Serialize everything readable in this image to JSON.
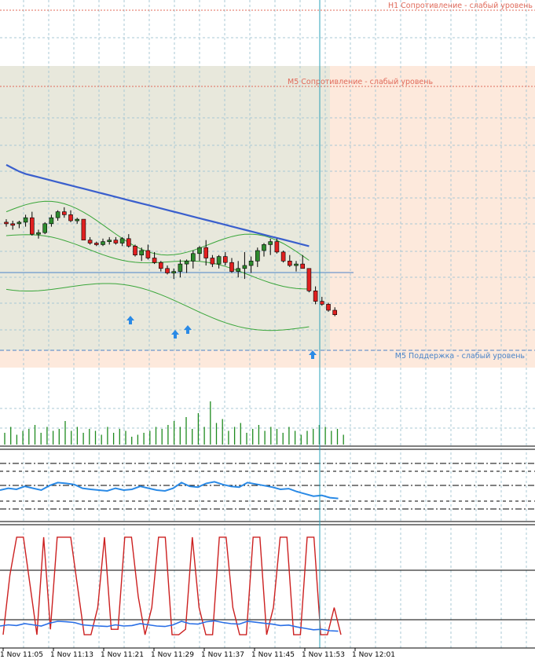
{
  "colors": {
    "background": "#ffffff",
    "grid": "#a9c8d4",
    "zone_green": "#e8e8dc",
    "zone_salmon": "#fde9dc",
    "bull_candle": "#2e8b2e",
    "bear_candle": "#e02020",
    "moving_average": "#3a5fcd",
    "bands": "#3aa63a",
    "crosshair": "#2aa0b8",
    "resistance_label": "#e06a5a",
    "support_label": "#4a84c8",
    "signal_arrow": "#2a8ae6",
    "volume": "#1e8a1e",
    "oscillator": "#2a8ae6",
    "stoch_line": "#cc2020"
  },
  "levels": {
    "h1_resistance": "H1 Сопротивление - слабый уровень",
    "m5_resistance": "M5 Сопротивление - слабый уровень",
    "m5_support": "M5 Поддержка - слабый уровень"
  },
  "signal_arrow_icon": "up-arrow-icon",
  "time_axis": [
    "1 Nov 11:05",
    "1 Nov 11:13",
    "1 Nov 11:21",
    "1 Nov 11:29",
    "1 Nov 11:37",
    "1 Nov 11:45",
    "1 Nov 11:53",
    "1 Nov 12:01"
  ],
  "chart_data": {
    "type": "candlestick",
    "candles_ohlc": [
      [
        0.45,
        0.55,
        0.3,
        0.4
      ],
      [
        0.4,
        0.5,
        0.2,
        0.35
      ],
      [
        0.4,
        0.5,
        0.25,
        0.45
      ],
      [
        0.45,
        0.7,
        0.3,
        0.6
      ],
      [
        0.6,
        0.8,
        0.0,
        0.05
      ],
      [
        0.05,
        0.2,
        -0.1,
        0.1
      ],
      [
        0.1,
        0.45,
        0.05,
        0.4
      ],
      [
        0.4,
        0.7,
        0.3,
        0.6
      ],
      [
        0.6,
        0.85,
        0.5,
        0.8
      ],
      [
        0.8,
        0.95,
        0.6,
        0.7
      ],
      [
        0.7,
        0.85,
        0.45,
        0.5
      ],
      [
        0.5,
        0.6,
        0.4,
        0.55
      ],
      [
        0.55,
        0.55,
        -0.1,
        -0.15
      ],
      [
        -0.15,
        -0.05,
        -0.3,
        -0.25
      ],
      [
        -0.25,
        -0.2,
        -0.35,
        -0.3
      ],
      [
        -0.3,
        -0.1,
        -0.35,
        -0.2
      ],
      [
        -0.2,
        -0.05,
        -0.3,
        -0.15
      ],
      [
        -0.15,
        -0.05,
        -0.3,
        -0.25
      ],
      [
        -0.25,
        -0.05,
        -0.35,
        -0.1
      ],
      [
        -0.1,
        0.05,
        -0.4,
        -0.35
      ],
      [
        -0.35,
        -0.3,
        -0.7,
        -0.65
      ],
      [
        -0.65,
        -0.4,
        -0.85,
        -0.5
      ],
      [
        -0.5,
        -0.3,
        -0.8,
        -0.75
      ],
      [
        -0.75,
        -0.55,
        -0.95,
        -0.9
      ],
      [
        -0.9,
        -0.85,
        -1.2,
        -1.1
      ],
      [
        -1.1,
        -1.0,
        -1.3,
        -1.25
      ],
      [
        -1.25,
        -1.1,
        -1.45,
        -1.2
      ],
      [
        -1.2,
        -0.8,
        -1.4,
        -0.95
      ],
      [
        -0.95,
        -0.8,
        -1.25,
        -0.85
      ],
      [
        -0.85,
        -0.5,
        -1.1,
        -0.6
      ],
      [
        -0.6,
        -0.35,
        -0.85,
        -0.4
      ],
      [
        -0.4,
        -0.15,
        -1.0,
        -0.75
      ],
      [
        -0.75,
        -0.65,
        -1.05,
        -0.95
      ],
      [
        -0.95,
        -0.65,
        -1.1,
        -0.7
      ],
      [
        -0.7,
        -0.55,
        -1.0,
        -0.9
      ],
      [
        -0.9,
        -0.75,
        -1.25,
        -1.2
      ],
      [
        -1.2,
        -0.85,
        -1.4,
        -1.1
      ],
      [
        -1.1,
        -0.55,
        -1.45,
        -1.0
      ],
      [
        -1.0,
        -0.7,
        -1.25,
        -0.85
      ],
      [
        -0.85,
        -0.4,
        -1.05,
        -0.5
      ],
      [
        -0.5,
        -0.25,
        -0.7,
        -0.3
      ],
      [
        -0.3,
        -0.1,
        -0.65,
        -0.2
      ],
      [
        -0.2,
        -0.1,
        -0.6,
        -0.55
      ],
      [
        -0.55,
        -0.5,
        -0.9,
        -0.85
      ],
      [
        -0.85,
        -0.65,
        -1.05,
        -1.0
      ],
      [
        -1.0,
        -0.85,
        -1.2,
        -0.95
      ],
      [
        -0.95,
        -0.65,
        -1.05,
        -1.1
      ],
      [
        -1.1,
        -1.1,
        -1.9,
        -1.85
      ],
      [
        -1.85,
        -1.7,
        -2.3,
        -2.2
      ],
      [
        -2.2,
        -2.05,
        -2.35,
        -2.3
      ],
      [
        -2.3,
        -2.25,
        -2.55,
        -2.5
      ],
      [
        -2.5,
        -2.4,
        -2.7,
        -2.65
      ]
    ],
    "moving_average": [
      3.4,
      3.2,
      3.0,
      2.85,
      2.75,
      2.65,
      2.55,
      2.45,
      2.35,
      2.25,
      2.15,
      2.05,
      1.95,
      1.85,
      1.75,
      1.65,
      1.55,
      1.45,
      1.35,
      1.25,
      1.15,
      1.05,
      0.95,
      0.85,
      0.75,
      0.65,
      0.55,
      0.45,
      0.35,
      0.25,
      0.15,
      0.05,
      -0.05,
      -0.15,
      -0.25,
      -0.35,
      -0.45,
      -0.55,
      -0.65,
      -0.75,
      -0.85,
      -0.95,
      -1.05,
      -1.15,
      -1.25,
      -1.35,
      -1.45,
      -1.55
    ],
    "volume": [
      6,
      9,
      5,
      7,
      8,
      10,
      6,
      9,
      7,
      8,
      12,
      7,
      9,
      6,
      8,
      7,
      5,
      9,
      6,
      8,
      7,
      4,
      5,
      6,
      7,
      9,
      8,
      10,
      12,
      9,
      14,
      8,
      16,
      9,
      22,
      11,
      13,
      7,
      9,
      11,
      6,
      8,
      10,
      7,
      9,
      8,
      6,
      9,
      7,
      5,
      7,
      8,
      10,
      9,
      7,
      8,
      5
    ],
    "oscillator": [
      0.5,
      0.55,
      0.52,
      0.6,
      0.55,
      0.5,
      0.62,
      0.7,
      0.68,
      0.65,
      0.55,
      0.52,
      0.5,
      0.48,
      0.55,
      0.5,
      0.52,
      0.6,
      0.55,
      0.5,
      0.48,
      0.55,
      0.7,
      0.6,
      0.58,
      0.68,
      0.72,
      0.65,
      0.6,
      0.58,
      0.7,
      0.66,
      0.62,
      0.58,
      0.52,
      0.54,
      0.46,
      0.4,
      0.34,
      0.36,
      0.3,
      0.28
    ],
    "stochastic": [
      0.05,
      0.6,
      0.95,
      0.95,
      0.5,
      0.05,
      0.95,
      0.1,
      0.95,
      0.95,
      0.95,
      0.5,
      0.05,
      0.05,
      0.3,
      0.95,
      0.1,
      0.1,
      0.95,
      0.95,
      0.4,
      0.05,
      0.3,
      0.95,
      0.95,
      0.05,
      0.05,
      0.1,
      0.95,
      0.3,
      0.05,
      0.05,
      0.95,
      0.95,
      0.3,
      0.05,
      0.05,
      0.95,
      0.95,
      0.05,
      0.3,
      0.95,
      0.95,
      0.05,
      0.05,
      0.95,
      0.95,
      0.05,
      0.05,
      0.3,
      0.05
    ]
  }
}
